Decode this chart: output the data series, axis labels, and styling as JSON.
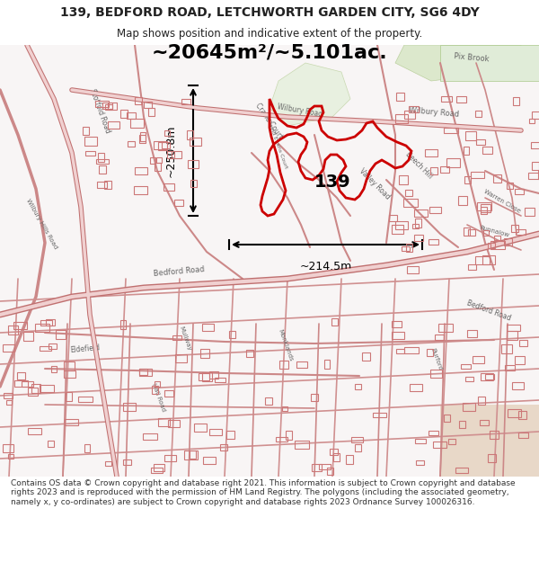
{
  "title_line1": "139, BEDFORD ROAD, LETCHWORTH GARDEN CITY, SG6 4DY",
  "title_line2": "Map shows position and indicative extent of the property.",
  "area_text": "~20645m²/~5.101ac.",
  "dim_vertical": "~250.8m",
  "dim_horizontal": "~214.5m",
  "label_139": "139",
  "footer_text": "Contains OS data © Crown copyright and database right 2021. This information is subject to Crown copyright and database rights 2023 and is reproduced with the permission of HM Land Registry. The polygons (including the associated geometry, namely x, y co-ordinates) are subject to Crown copyright and database rights 2023 Ordnance Survey 100026316.",
  "highlight_color": "#cc0000",
  "text_color": "#222222",
  "footer_color": "#333333",
  "fig_width": 6.0,
  "fig_height": 6.25,
  "dpi": 100
}
